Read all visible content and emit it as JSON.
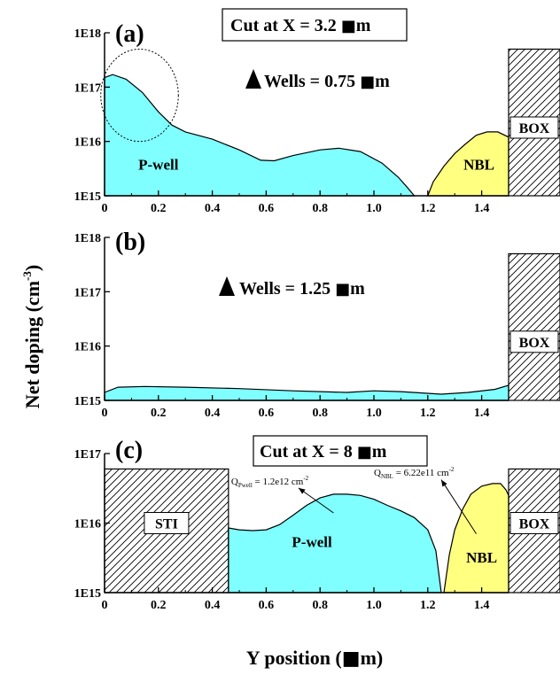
{
  "ylabel_main": "Net doping (cm",
  "ylabel_sup": "-3",
  "ylabel_close": ")",
  "xlabel": "Y position (",
  "xlabel_unit_close": "m)",
  "colors": {
    "well": "#7fffff",
    "nbl": "#ffff80",
    "hatch": "#000000"
  },
  "chart_data": [
    {
      "type": "area",
      "panel_label": "(a)",
      "title": "Cut at X = 3.2",
      "title_unit": "m",
      "annotation": "Wells = 0.75",
      "annotation_unit": "m",
      "xlim": [
        0,
        1.5
      ],
      "ylim": [
        1000000000000000.0,
        1e+18
      ],
      "yscale": "log",
      "xticks": [
        0,
        0.2,
        0.4,
        0.6,
        0.8,
        1.0,
        1.2,
        1.4
      ],
      "xtick_labels": [
        "0",
        "0.2",
        "0.4",
        "0.6",
        "0.8",
        "1.0",
        "1.2",
        "1.4"
      ],
      "yticks": [
        1000000000000000.0,
        1e+16,
        1e+17,
        1e+18
      ],
      "ytick_labels": [
        "1E15",
        "1E16",
        "1E17",
        "1E18"
      ],
      "regions": [
        {
          "name": "P-well",
          "label": "P-well",
          "label_at": [
            0.2,
            3000000000000000.0
          ],
          "x": [
            0,
            0.03,
            0.08,
            0.14,
            0.2,
            0.25,
            0.3,
            0.4,
            0.5,
            0.58,
            0.63,
            0.7,
            0.8,
            0.87,
            0.95,
            1.03,
            1.09,
            1.12,
            1.15
          ],
          "y": [
            1.5e+17,
            1.7e+17,
            1.4e+17,
            8e+16,
            3.5e+16,
            2e+16,
            1.5e+16,
            1.1e+16,
            7000000000000000.0,
            4500000000000000.0,
            4400000000000000.0,
            5500000000000000.0,
            7000000000000000.0,
            7500000000000000.0,
            6500000000000000.0,
            4000000000000000.0,
            2200000000000000.0,
            1500000000000000.0,
            1000000000000000.0
          ]
        },
        {
          "name": "NBL",
          "label": "NBL",
          "label_at": [
            1.39,
            3000000000000000.0
          ],
          "x": [
            1.2,
            1.22,
            1.26,
            1.3,
            1.34,
            1.38,
            1.42,
            1.46,
            1.5
          ],
          "y": [
            1000000000000000.0,
            1800000000000000.0,
            3500000000000000.0,
            6000000000000000.0,
            9000000000000000.0,
            1.3e+16,
            1.5e+16,
            1.5e+16,
            1.2e+16
          ]
        }
      ],
      "hatched": [
        {
          "name": "BOX",
          "label": "BOX",
          "x_from": 1.5,
          "y_to": 5e+17
        }
      ],
      "ellipse": {
        "cx": 0.13,
        "cy": 6e+16,
        "rx": 0.2,
        "ry_low": 1e+16,
        "ry_high": 5e+17
      }
    },
    {
      "type": "area",
      "panel_label": "(b)",
      "annotation": "Wells = 1.25",
      "annotation_unit": "m",
      "xlim": [
        0,
        1.5
      ],
      "ylim": [
        1000000000000000.0,
        1e+18
      ],
      "yscale": "log",
      "xticks": [
        0,
        0.2,
        0.4,
        0.6,
        0.8,
        1.0,
        1.2,
        1.4
      ],
      "xtick_labels": [
        "0",
        "0.2",
        "0.4",
        "0.6",
        "0.8",
        "1.0",
        "1.2",
        "1.4"
      ],
      "yticks": [
        1000000000000000.0,
        1e+16,
        1e+17,
        1e+18
      ],
      "ytick_labels": [
        "1E15",
        "1E16",
        "1E17",
        "1E18"
      ],
      "regions": [
        {
          "name": "P-well",
          "x": [
            0,
            0.05,
            0.15,
            0.3,
            0.5,
            0.7,
            0.9,
            1.0,
            1.1,
            1.25,
            1.35,
            1.45,
            1.5
          ],
          "y": [
            1400000000000000.0,
            1750000000000000.0,
            1800000000000000.0,
            1750000000000000.0,
            1650000000000000.0,
            1500000000000000.0,
            1400000000000000.0,
            1500000000000000.0,
            1450000000000000.0,
            1300000000000000.0,
            1400000000000000.0,
            1600000000000000.0,
            1900000000000000.0
          ]
        }
      ],
      "hatched": [
        {
          "name": "BOX",
          "label": "BOX",
          "x_from": 1.5,
          "y_to": 5e+17
        }
      ]
    },
    {
      "type": "area",
      "panel_label": "(c)",
      "title": "Cut at X = 8",
      "title_unit": "m",
      "xlim": [
        0,
        1.5
      ],
      "ylim": [
        1000000000000000.0,
        1e+17
      ],
      "yscale": "log",
      "xticks": [
        0,
        0.2,
        0.4,
        0.6,
        0.8,
        1.0,
        1.2,
        1.4
      ],
      "xtick_labels": [
        "0",
        "0.2",
        "0.4",
        "0.6",
        "0.8",
        "1.0",
        "1.2",
        "1.4"
      ],
      "yticks": [
        1000000000000000.0,
        1e+16,
        1e+17
      ],
      "ytick_labels": [
        "1E15",
        "1E16",
        "1E17"
      ],
      "regions": [
        {
          "name": "P-well",
          "label": "P-well",
          "label_at": [
            0.77,
            4500000000000000.0
          ],
          "x": [
            0.46,
            0.5,
            0.55,
            0.6,
            0.65,
            0.7,
            0.75,
            0.8,
            0.85,
            0.9,
            0.95,
            1.0,
            1.05,
            1.1,
            1.15,
            1.2,
            1.23,
            1.25
          ],
          "y": [
            8500000000000000.0,
            8000000000000000.0,
            7800000000000000.0,
            8000000000000000.0,
            9500000000000000.0,
            1.3e+16,
            1.8e+16,
            2.3e+16,
            2.6e+16,
            2.6e+16,
            2.5e+16,
            2.2e+16,
            1.8e+16,
            1.5e+16,
            1.2e+16,
            8000000000000000.0,
            4000000000000000.0,
            1000000000000000.0
          ]
        },
        {
          "name": "NBL",
          "label": "NBL",
          "label_at": [
            1.4,
            2700000000000000.0
          ],
          "x": [
            1.26,
            1.28,
            1.3,
            1.33,
            1.36,
            1.4,
            1.44,
            1.47,
            1.49,
            1.5
          ],
          "y": [
            1000000000000000.0,
            3500000000000000.0,
            8000000000000000.0,
            1.6e+16,
            2.6e+16,
            3.4e+16,
            3.7e+16,
            3.7e+16,
            3e+16,
            2.5e+16
          ]
        }
      ],
      "hatched": [
        {
          "name": "STI",
          "label": "STI",
          "x_from": 0,
          "x_to": 0.46,
          "y_to": 6e+16
        },
        {
          "name": "BOX",
          "label": "BOX",
          "x_from": 1.5,
          "y_to": 6e+16
        }
      ],
      "charge_annotations": [
        {
          "name": "Q-pwell",
          "text": "Q",
          "sub": "Pwell",
          "after": " = 1.2e12 cm",
          "sup": "-2",
          "label_at": [
            0.47,
            3.6e+16
          ],
          "arrow_from": [
            0.85,
            1.4e+16
          ],
          "arrow_to": [
            0.72,
            3.2e+16
          ]
        },
        {
          "name": "Q-nbl",
          "text": "Q",
          "sub": "NBL",
          "after": " = 6.22e11 cm",
          "sup": "-2",
          "label_at": [
            1.0,
            4.8e+16
          ],
          "arrow_from": [
            1.38,
            7000000000000000.0
          ],
          "arrow_to": [
            1.25,
            4.2e+16
          ]
        }
      ]
    }
  ]
}
